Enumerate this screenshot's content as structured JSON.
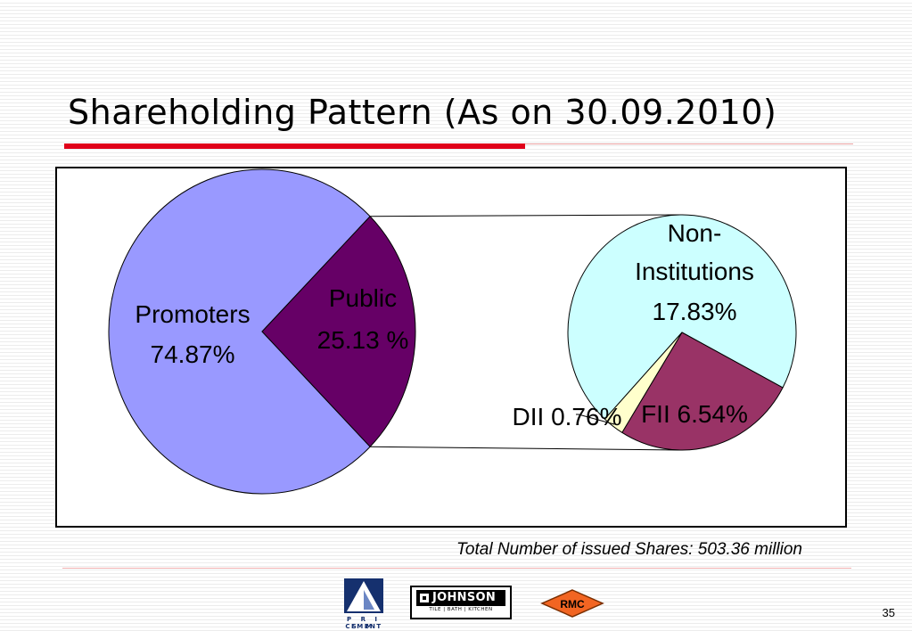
{
  "slide": {
    "title": "Shareholding Pattern (As on 30.09.2010)",
    "footnote": "Total Number of issued Shares:  503.36 million",
    "page_number": "35"
  },
  "chart_data": [
    {
      "type": "pie",
      "categories": [
        "Promoters",
        "Public"
      ],
      "values": [
        74.87,
        25.13
      ],
      "labels": [
        "Promoters",
        "Public"
      ],
      "value_labels": [
        "74.87%",
        "25.13 %"
      ],
      "colors": [
        "#9999ff",
        "#660066"
      ],
      "title": "",
      "legend": "none"
    },
    {
      "type": "pie",
      "categories": [
        "Non-Institutions",
        "FII",
        "DII"
      ],
      "values": [
        17.83,
        6.54,
        0.76
      ],
      "label_lines": [
        [
          "Non-",
          "Institutions",
          "17.83%"
        ],
        [
          "FII 6.54%"
        ],
        [
          "DII 0.76%"
        ]
      ],
      "colors": [
        "#ccffff",
        "#993366",
        "#ffffcc"
      ],
      "title": "",
      "legend": "none",
      "breakdown_of": "Public"
    }
  ],
  "logos": {
    "prism": {
      "text": "P R I S M",
      "subtext": "CEMENT",
      "color": "#15306e"
    },
    "johnson": {
      "name": "JOHNSON",
      "tagline": "TILE | BATH | KITCHEN"
    },
    "rmc": {
      "text": "RMC",
      "color": "#f26522"
    }
  }
}
